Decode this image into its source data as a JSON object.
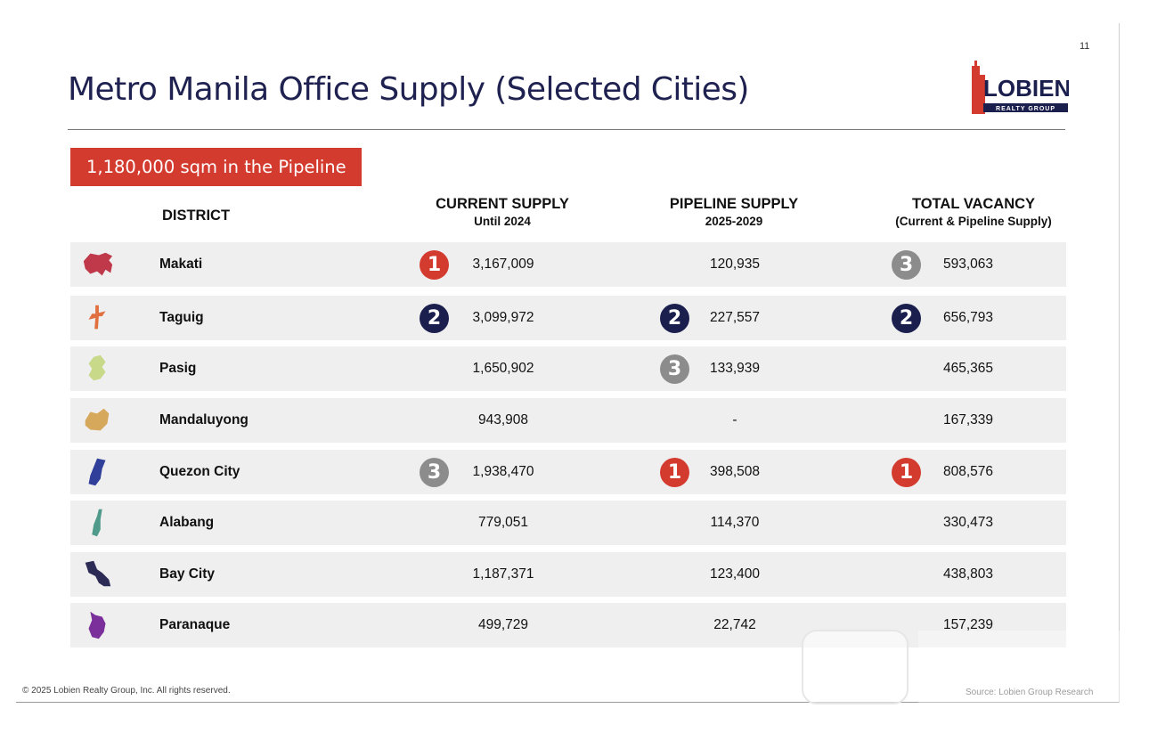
{
  "page_number": "11",
  "title": "Metro Manila Office Supply (Selected Cities)",
  "logo": {
    "text": "LOBIEN",
    "subtext": "REALTY GROUP",
    "brand_color": "#d43b2f",
    "navy": "#1b1f4d"
  },
  "banner": "1,180,000 sqm in the Pipeline",
  "headers": {
    "district": "DISTRICT",
    "current_supply": "CURRENT SUPPLY",
    "current_supply_sub": "Until 2024",
    "pipeline_supply": "PIPELINE SUPPLY",
    "pipeline_supply_sub": "2025-2029",
    "total_vacancy": "TOTAL VACANCY",
    "total_vacancy_sub": "(Current & Pipeline Supply)"
  },
  "rank_colors": {
    "1": "#d43b2f",
    "2": "#1b1f4d",
    "3": "#8c8c8c"
  },
  "rows": [
    {
      "district": "Makati",
      "map_icon": "makati-map-icon",
      "map_color": "#c0394a",
      "current": "3,167,009",
      "current_rank": "1",
      "pipeline": "120,935",
      "pipeline_rank": "",
      "vacancy": "593,063",
      "vacancy_rank": "3"
    },
    {
      "district": "Taguig",
      "map_icon": "taguig-map-icon",
      "map_color": "#e0703f",
      "current": "3,099,972",
      "current_rank": "2",
      "pipeline": "227,557",
      "pipeline_rank": "2",
      "vacancy": "656,793",
      "vacancy_rank": "2"
    },
    {
      "district": "Pasig",
      "map_icon": "pasig-map-icon",
      "map_color": "#c9d98a",
      "current": "1,650,902",
      "current_rank": "",
      "pipeline": "133,939",
      "pipeline_rank": "3",
      "vacancy": "465,365",
      "vacancy_rank": ""
    },
    {
      "district": "Mandaluyong",
      "map_icon": "mandaluyong-map-icon",
      "map_color": "#d6a85c",
      "current": "943,908",
      "current_rank": "",
      "pipeline": "-",
      "pipeline_rank": "",
      "vacancy": "167,339",
      "vacancy_rank": ""
    },
    {
      "district": "Quezon City",
      "map_icon": "quezon-city-map-icon",
      "map_color": "#2f3f9a",
      "current": "1,938,470",
      "current_rank": "3",
      "pipeline": "398,508",
      "pipeline_rank": "1",
      "vacancy": "808,576",
      "vacancy_rank": "1"
    },
    {
      "district": "Alabang",
      "map_icon": "alabang-map-icon",
      "map_color": "#4f9a8a",
      "current": "779,051",
      "current_rank": "",
      "pipeline": "114,370",
      "pipeline_rank": "",
      "vacancy": "330,473",
      "vacancy_rank": ""
    },
    {
      "district": "Bay City",
      "map_icon": "bay-city-map-icon",
      "map_color": "#2b2b55",
      "current": "1,187,371",
      "current_rank": "",
      "pipeline": "123,400",
      "pipeline_rank": "",
      "vacancy": "438,803",
      "vacancy_rank": ""
    },
    {
      "district": "Paranaque",
      "map_icon": "paranaque-map-icon",
      "map_color": "#7a2f9a",
      "current": "499,729",
      "current_rank": "",
      "pipeline": "22,742",
      "pipeline_rank": "",
      "vacancy": "157,239",
      "vacancy_rank": ""
    }
  ],
  "footer": "© 2025 Lobien Realty Group, Inc. All rights reserved.",
  "source": "Source: Lobien Group Research"
}
